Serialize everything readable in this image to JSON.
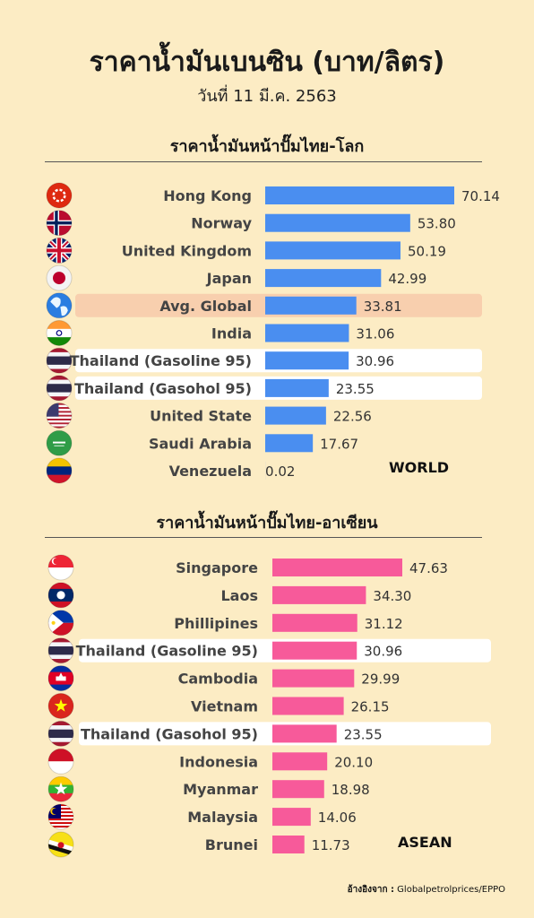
{
  "header": {
    "title": "ราคาน้ำมันเบนซิน (บาท/ลิตร)",
    "date": "วันที่ 11 มี.ค. 2563"
  },
  "sections": {
    "world_heading": "ราคาน้ำมันหน้าปั๊มไทย-โลก",
    "world_tag": "WORLD",
    "asean_heading": "ราคาน้ำมันหน้าปั๊มไทย-อาเซียน",
    "asean_tag": "ASEAN"
  },
  "source": {
    "label": "อ้างอิงจาก :",
    "text": "Globalpetrolprices/EPPO"
  },
  "colors": {
    "background": "#fcecc4",
    "world_bar": "#4a8ef0",
    "asean_bar": "#f75a9a",
    "highlight_avg": "#f8cfae",
    "highlight_thai": "#ffffff"
  },
  "chart_data": [
    {
      "type": "bar",
      "orientation": "horizontal",
      "categories": [
        "Hong Kong",
        "Norway",
        "United Kingdom",
        "Japan",
        "Avg. Global",
        "India",
        "Thailand (Gasoline 95)",
        "Thailand (Gasohol 95)",
        "United State",
        "Saudi Arabia",
        "Venezuela"
      ],
      "values": [
        70.14,
        53.8,
        50.19,
        42.99,
        33.81,
        31.06,
        30.96,
        23.55,
        22.56,
        17.67,
        0.02
      ],
      "labels": [
        "70.14",
        "53.80",
        "50.19",
        "42.99",
        "33.81",
        "31.06",
        "30.96",
        "23.55",
        "22.56",
        "17.67",
        "0.02"
      ],
      "highlight": [
        "none",
        "none",
        "none",
        "none",
        "avg",
        "none",
        "thai",
        "thai",
        "none",
        "none",
        "none"
      ],
      "icons": [
        "flag-hong-kong-icon",
        "flag-norway-icon",
        "flag-united-kingdom-icon",
        "flag-japan-icon",
        "globe-icon",
        "flag-india-icon",
        "flag-thailand-icon",
        "flag-thailand-icon",
        "flag-united-states-icon",
        "flag-saudi-arabia-icon",
        "flag-venezuela-icon"
      ],
      "color": "#4a8ef0",
      "xlim": [
        0,
        70.14
      ]
    },
    {
      "type": "bar",
      "orientation": "horizontal",
      "categories": [
        "Singapore",
        "Laos",
        "Phillipines",
        "Thailand (Gasoline 95)",
        "Cambodia",
        "Vietnam",
        "Thailand (Gasohol 95)",
        "Indonesia",
        "Myanmar",
        "Malaysia",
        "Brunei"
      ],
      "values": [
        47.63,
        34.3,
        31.12,
        30.96,
        29.99,
        26.15,
        23.55,
        20.1,
        18.98,
        14.06,
        11.73
      ],
      "labels": [
        "47.63",
        "34.30",
        "31.12",
        "30.96",
        "29.99",
        "26.15",
        "23.55",
        "20.10",
        "18.98",
        "14.06",
        "11.73"
      ],
      "highlight": [
        "none",
        "none",
        "none",
        "thai",
        "none",
        "none",
        "thai",
        "none",
        "none",
        "none",
        "none"
      ],
      "icons": [
        "flag-singapore-icon",
        "flag-laos-icon",
        "flag-philippines-icon",
        "flag-thailand-icon",
        "flag-cambodia-icon",
        "flag-vietnam-icon",
        "flag-thailand-icon",
        "flag-indonesia-icon",
        "flag-myanmar-icon",
        "flag-malaysia-icon",
        "flag-brunei-icon"
      ],
      "color": "#f75a9a",
      "xlim": [
        0,
        47.63
      ]
    }
  ]
}
